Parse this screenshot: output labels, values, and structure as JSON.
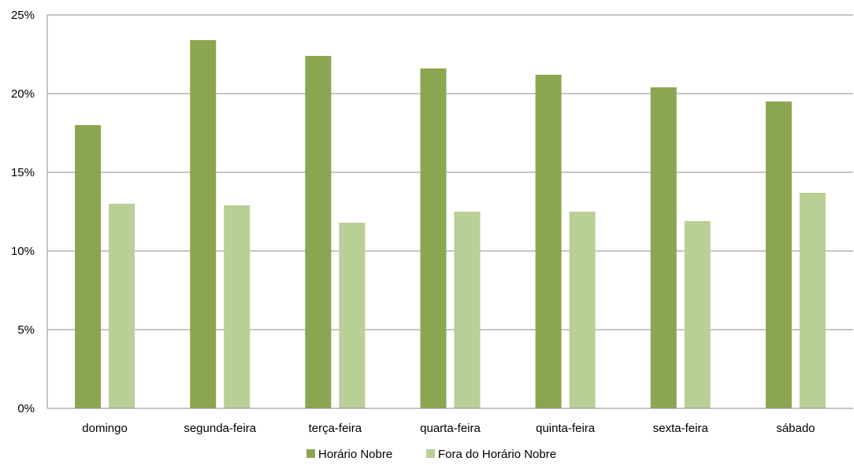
{
  "chart_data": {
    "type": "bar",
    "categories": [
      "domingo",
      "segunda-feira",
      "terça-feira",
      "quarta-feira",
      "quinta-feira",
      "sexta-feira",
      "sábado"
    ],
    "series": [
      {
        "name": "Horário Nobre",
        "color": "#8aa650",
        "values": [
          18.0,
          23.4,
          22.4,
          21.6,
          21.2,
          20.4,
          19.5
        ]
      },
      {
        "name": "Fora do Horário Nobre",
        "color": "#b9cf96",
        "values": [
          13.0,
          12.9,
          11.8,
          12.5,
          12.5,
          11.9,
          13.7
        ]
      }
    ],
    "y_ticks": [
      "0%",
      "5%",
      "10%",
      "15%",
      "20%",
      "25%"
    ],
    "ylim": [
      0,
      25
    ],
    "title": "",
    "xlabel": "",
    "ylabel": "",
    "grid": "horizontal",
    "legend_position": "bottom"
  }
}
